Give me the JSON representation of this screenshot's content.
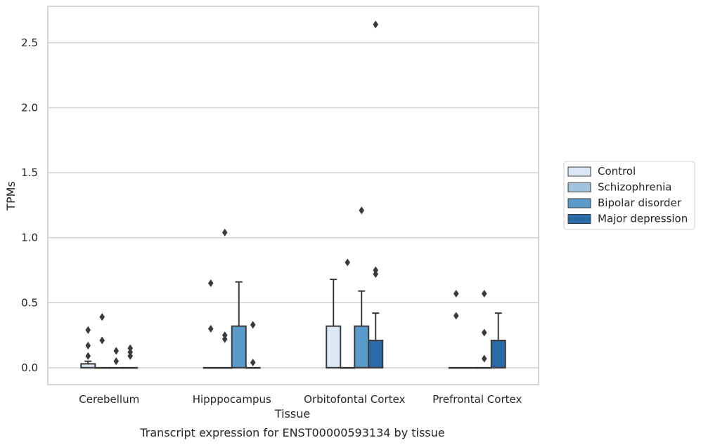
{
  "chart_data": {
    "type": "box",
    "title": "Transcript expression for ENST00000593134 by tissue",
    "xlabel": "Tissue",
    "ylabel": "TPMs",
    "ylim": [
      -0.13,
      2.78
    ],
    "yticks": [
      0.0,
      0.5,
      1.0,
      1.5,
      2.0,
      2.5
    ],
    "ytick_labels": [
      "0.0",
      "0.5",
      "1.0",
      "1.5",
      "2.0",
      "2.5"
    ],
    "grid": "horizontal",
    "legend_position": "right",
    "categories": [
      "Cerebellum",
      "Hipppocampus",
      "Orbitofontal Cortex",
      "Prefrontal Cortex"
    ],
    "series": [
      {
        "name": "Control",
        "color": "#dbe8f5",
        "boxes": [
          {
            "q1": 0.0,
            "median": 0.0,
            "q3": 0.03,
            "whisker_low": 0.0,
            "whisker_high": 0.05,
            "outliers": [
              0.29,
              0.17,
              0.09
            ]
          },
          {
            "q1": 0.0,
            "median": 0.0,
            "q3": 0.0,
            "whisker_low": 0.0,
            "whisker_high": 0.0,
            "outliers": [
              0.65,
              0.3
            ]
          },
          {
            "q1": 0.0,
            "median": 0.0,
            "q3": 0.32,
            "whisker_low": 0.0,
            "whisker_high": 0.68,
            "outliers": []
          },
          {
            "q1": 0.0,
            "median": 0.0,
            "q3": 0.0,
            "whisker_low": 0.0,
            "whisker_high": 0.0,
            "outliers": [
              0.57,
              0.4
            ]
          }
        ]
      },
      {
        "name": "Schizophrenia",
        "color": "#a0c4df",
        "boxes": [
          {
            "q1": 0.0,
            "median": 0.0,
            "q3": 0.0,
            "whisker_low": 0.0,
            "whisker_high": 0.0,
            "outliers": [
              0.39,
              0.21
            ]
          },
          {
            "q1": 0.0,
            "median": 0.0,
            "q3": 0.0,
            "whisker_low": 0.0,
            "whisker_high": 0.0,
            "outliers": [
              1.04,
              0.25,
              0.22
            ]
          },
          {
            "q1": 0.0,
            "median": 0.0,
            "q3": 0.0,
            "whisker_low": 0.0,
            "whisker_high": 0.0,
            "outliers": [
              0.81
            ]
          },
          {
            "q1": 0.0,
            "median": 0.0,
            "q3": 0.0,
            "whisker_low": 0.0,
            "whisker_high": 0.0,
            "outliers": []
          }
        ]
      },
      {
        "name": "Bipolar disorder",
        "color": "#5b9bc9",
        "boxes": [
          {
            "q1": 0.0,
            "median": 0.0,
            "q3": 0.0,
            "whisker_low": 0.0,
            "whisker_high": 0.0,
            "outliers": [
              0.13,
              0.05
            ]
          },
          {
            "q1": 0.0,
            "median": 0.0,
            "q3": 0.32,
            "whisker_low": 0.0,
            "whisker_high": 0.66,
            "outliers": []
          },
          {
            "q1": 0.0,
            "median": 0.0,
            "q3": 0.32,
            "whisker_low": 0.0,
            "whisker_high": 0.59,
            "outliers": [
              1.21
            ]
          },
          {
            "q1": 0.0,
            "median": 0.0,
            "q3": 0.0,
            "whisker_low": 0.0,
            "whisker_high": 0.0,
            "outliers": [
              0.57,
              0.27,
              0.07
            ]
          }
        ]
      },
      {
        "name": "Major depression",
        "color": "#2a6aa7",
        "boxes": [
          {
            "q1": 0.0,
            "median": 0.0,
            "q3": 0.0,
            "whisker_low": 0.0,
            "whisker_high": 0.0,
            "outliers": [
              0.15,
              0.12,
              0.09
            ]
          },
          {
            "q1": 0.0,
            "median": 0.0,
            "q3": 0.0,
            "whisker_low": 0.0,
            "whisker_high": 0.0,
            "outliers": [
              0.33,
              0.04
            ]
          },
          {
            "q1": 0.0,
            "median": 0.0,
            "q3": 0.21,
            "whisker_low": 0.0,
            "whisker_high": 0.42,
            "outliers": [
              2.64,
              0.75,
              0.72
            ]
          },
          {
            "q1": 0.0,
            "median": 0.0,
            "q3": 0.21,
            "whisker_low": 0.0,
            "whisker_high": 0.42,
            "outliers": []
          }
        ]
      }
    ]
  },
  "colors": {
    "grid": "#cccccc",
    "axes_edge": "#c8c8c8",
    "box_edge": "#3a3a3a",
    "text": "#262626"
  }
}
